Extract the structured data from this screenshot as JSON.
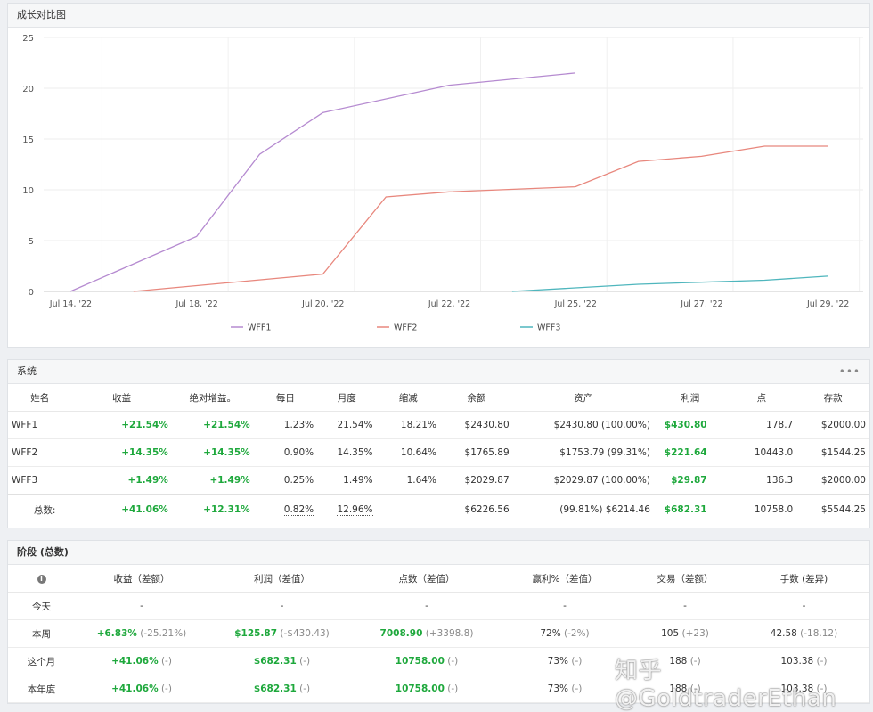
{
  "growth_panel": {
    "title": "成长对比图"
  },
  "chart_data": {
    "type": "line",
    "x_ticks": [
      "Jul 14, '22",
      "Jul 18, '22",
      "Jul 20, '22",
      "Jul 22, '22",
      "Jul 25, '22",
      "Jul 27, '22",
      "Jul 29, '22"
    ],
    "y_ticks": [
      "0",
      "5",
      "10",
      "15",
      "20",
      "25"
    ],
    "ylim": [
      0,
      25
    ],
    "grid": true,
    "legend": "bottom",
    "series": [
      {
        "name": "WFF1",
        "color": "#b58ad0",
        "points": [
          [
            0,
            0
          ],
          [
            1.0,
            5.4
          ],
          [
            1.5,
            13.5
          ],
          [
            2.0,
            17.6
          ],
          [
            3.0,
            20.3
          ],
          [
            4.0,
            21.5
          ]
        ]
      },
      {
        "name": "WFF2",
        "color": "#e8877d",
        "points": [
          [
            0.5,
            0
          ],
          [
            2.0,
            1.7
          ],
          [
            2.5,
            9.3
          ],
          [
            3.0,
            9.8
          ],
          [
            4.0,
            10.3
          ],
          [
            4.5,
            12.8
          ],
          [
            5.0,
            13.3
          ],
          [
            5.5,
            14.3
          ],
          [
            6.0,
            14.3
          ]
        ]
      },
      {
        "name": "WFF3",
        "color": "#4fb6bd",
        "points": [
          [
            3.5,
            0
          ],
          [
            4.5,
            0.7
          ],
          [
            5.0,
            0.9
          ],
          [
            5.5,
            1.1
          ],
          [
            6.0,
            1.5
          ]
        ]
      }
    ]
  },
  "system_panel": {
    "title": "系统",
    "menu_icon": "more-dots-icon",
    "headers": [
      "姓名",
      "收益",
      "绝对增益。",
      "每日",
      "月度",
      "缩减",
      "余额",
      "资产",
      "利润",
      "点",
      "存款"
    ],
    "rows": [
      {
        "name": "WFF1",
        "gain": "+21.54%",
        "abs_gain": "+21.54%",
        "daily": "1.23%",
        "monthly": "21.54%",
        "drawdown": "18.21%",
        "balance": "$2430.80",
        "equity": "$2430.80 (100.00%)",
        "profit": "$430.80",
        "pips": "178.7",
        "deposits": "$2000.00"
      },
      {
        "name": "WFF2",
        "gain": "+14.35%",
        "abs_gain": "+14.35%",
        "daily": "0.90%",
        "monthly": "14.35%",
        "drawdown": "10.64%",
        "balance": "$1765.89",
        "equity": "$1753.79 (99.31%)",
        "profit": "$221.64",
        "pips": "10443.0",
        "deposits": "$1544.25"
      },
      {
        "name": "WFF3",
        "gain": "+1.49%",
        "abs_gain": "+1.49%",
        "daily": "0.25%",
        "monthly": "1.49%",
        "drawdown": "1.64%",
        "balance": "$2029.87",
        "equity": "$2029.87 (100.00%)",
        "profit": "$29.87",
        "pips": "136.3",
        "deposits": "$2000.00"
      }
    ],
    "total": {
      "label": "总数:",
      "gain": "+41.06%",
      "abs_gain": "+12.31%",
      "daily": "0.82%",
      "monthly": "12.96%",
      "balance": "$6226.56",
      "equity": "(99.81%) $6214.46",
      "profit": "$682.31",
      "pips": "10758.0",
      "deposits": "$5544.25"
    }
  },
  "stages_panel": {
    "title": "阶段 (总数)",
    "info_icon": "info-icon",
    "headers": [
      "收益（差额）",
      "利润（差值）",
      "点数（差值）",
      "赢利%（差值）",
      "交易（差额）",
      "手数 (差异)"
    ],
    "rows": [
      {
        "label": "今天",
        "gain": "-",
        "gain_d": "",
        "profit": "-",
        "profit_d": "",
        "pips": "-",
        "pips_d": "",
        "win": "-",
        "win_d": "",
        "trades": "-",
        "trades_d": "",
        "lots": "-",
        "lots_d": ""
      },
      {
        "label": "本周",
        "gain": "+6.83%",
        "gain_d": "(-25.21%)",
        "profit": "$125.87",
        "profit_d": "(-$430.43)",
        "pips": "7008.90",
        "pips_d": "(+3398.8)",
        "win": "72%",
        "win_d": "(-2%)",
        "trades": "105",
        "trades_d": "(+23)",
        "lots": "42.58",
        "lots_d": "(-18.12)"
      },
      {
        "label": "这个月",
        "gain": "+41.06%",
        "gain_d": "(-)",
        "profit": "$682.31",
        "profit_d": "(-)",
        "pips": "10758.00",
        "pips_d": "(-)",
        "win": "73%",
        "win_d": "(-)",
        "trades": "188",
        "trades_d": "(-)",
        "lots": "103.38",
        "lots_d": "(-)"
      },
      {
        "label": "本年度",
        "gain": "+41.06%",
        "gain_d": "(-)",
        "profit": "$682.31",
        "profit_d": "(-)",
        "pips": "10758.00",
        "pips_d": "(-)",
        "win": "73%",
        "win_d": "(-)",
        "trades": "188",
        "trades_d": "(-)",
        "lots": "103.38",
        "lots_d": "(-)"
      }
    ]
  },
  "watermark": "知乎 @GoldtraderEthan"
}
